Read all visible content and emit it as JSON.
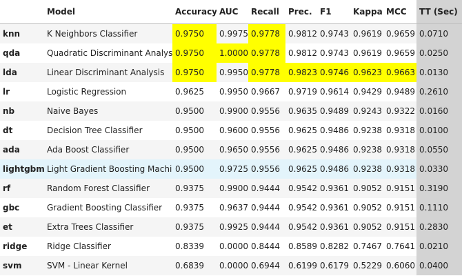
{
  "table": {
    "columns": [
      "Model",
      "Accuracy",
      "AUC",
      "Recall",
      "Prec.",
      "F1",
      "Kappa",
      "MCC",
      "TT (Sec)"
    ],
    "highlight_color": "#ffff00",
    "tt_column_color": "#d3d3d3",
    "hover_row_color": "#e3f4fb",
    "rows": [
      {
        "id": "knn",
        "cells": [
          "K Neighbors Classifier",
          "0.9750",
          "0.9975",
          "0.9778",
          "0.9812",
          "0.9743",
          "0.9619",
          "0.9659",
          "0.0710"
        ],
        "hl": [
          1,
          3
        ]
      },
      {
        "id": "qda",
        "cells": [
          "Quadratic Discriminant Analysis",
          "0.9750",
          "1.0000",
          "0.9778",
          "0.9812",
          "0.9743",
          "0.9619",
          "0.9659",
          "0.0250"
        ],
        "hl": [
          1,
          2,
          3
        ]
      },
      {
        "id": "lda",
        "cells": [
          "Linear Discriminant Analysis",
          "0.9750",
          "0.9950",
          "0.9778",
          "0.9823",
          "0.9746",
          "0.9623",
          "0.9663",
          "0.0130"
        ],
        "hl": [
          1,
          3,
          4,
          5,
          6,
          7
        ]
      },
      {
        "id": "lr",
        "cells": [
          "Logistic Regression",
          "0.9625",
          "0.9950",
          "0.9667",
          "0.9719",
          "0.9614",
          "0.9429",
          "0.9489",
          "0.2610"
        ],
        "hl": []
      },
      {
        "id": "nb",
        "cells": [
          "Naive Bayes",
          "0.9500",
          "0.9900",
          "0.9556",
          "0.9635",
          "0.9489",
          "0.9243",
          "0.9322",
          "0.0160"
        ],
        "hl": []
      },
      {
        "id": "dt",
        "cells": [
          "Decision Tree Classifier",
          "0.9500",
          "0.9600",
          "0.9556",
          "0.9625",
          "0.9486",
          "0.9238",
          "0.9318",
          "0.0100"
        ],
        "hl": []
      },
      {
        "id": "ada",
        "cells": [
          "Ada Boost Classifier",
          "0.9500",
          "0.9650",
          "0.9556",
          "0.9625",
          "0.9486",
          "0.9238",
          "0.9318",
          "0.0550"
        ],
        "hl": []
      },
      {
        "id": "lightgbm",
        "cells": [
          "Light Gradient Boosting Machine",
          "0.9500",
          "0.9725",
          "0.9556",
          "0.9625",
          "0.9486",
          "0.9238",
          "0.9318",
          "0.0330"
        ],
        "hl": [],
        "hover": true
      },
      {
        "id": "rf",
        "cells": [
          "Random Forest Classifier",
          "0.9375",
          "0.9900",
          "0.9444",
          "0.9542",
          "0.9361",
          "0.9052",
          "0.9151",
          "0.3190"
        ],
        "hl": []
      },
      {
        "id": "gbc",
        "cells": [
          "Gradient Boosting Classifier",
          "0.9375",
          "0.9637",
          "0.9444",
          "0.9542",
          "0.9361",
          "0.9052",
          "0.9151",
          "0.1110"
        ],
        "hl": []
      },
      {
        "id": "et",
        "cells": [
          "Extra Trees Classifier",
          "0.9375",
          "0.9925",
          "0.9444",
          "0.9542",
          "0.9361",
          "0.9052",
          "0.9151",
          "0.2830"
        ],
        "hl": []
      },
      {
        "id": "ridge",
        "cells": [
          "Ridge Classifier",
          "0.8339",
          "0.0000",
          "0.8444",
          "0.8589",
          "0.8282",
          "0.7467",
          "0.7641",
          "0.0210"
        ],
        "hl": []
      },
      {
        "id": "svm",
        "cells": [
          "SVM - Linear Kernel",
          "0.6839",
          "0.0000",
          "0.6944",
          "0.6199",
          "0.6179",
          "0.5229",
          "0.6060",
          "0.0400"
        ],
        "hl": []
      }
    ]
  }
}
